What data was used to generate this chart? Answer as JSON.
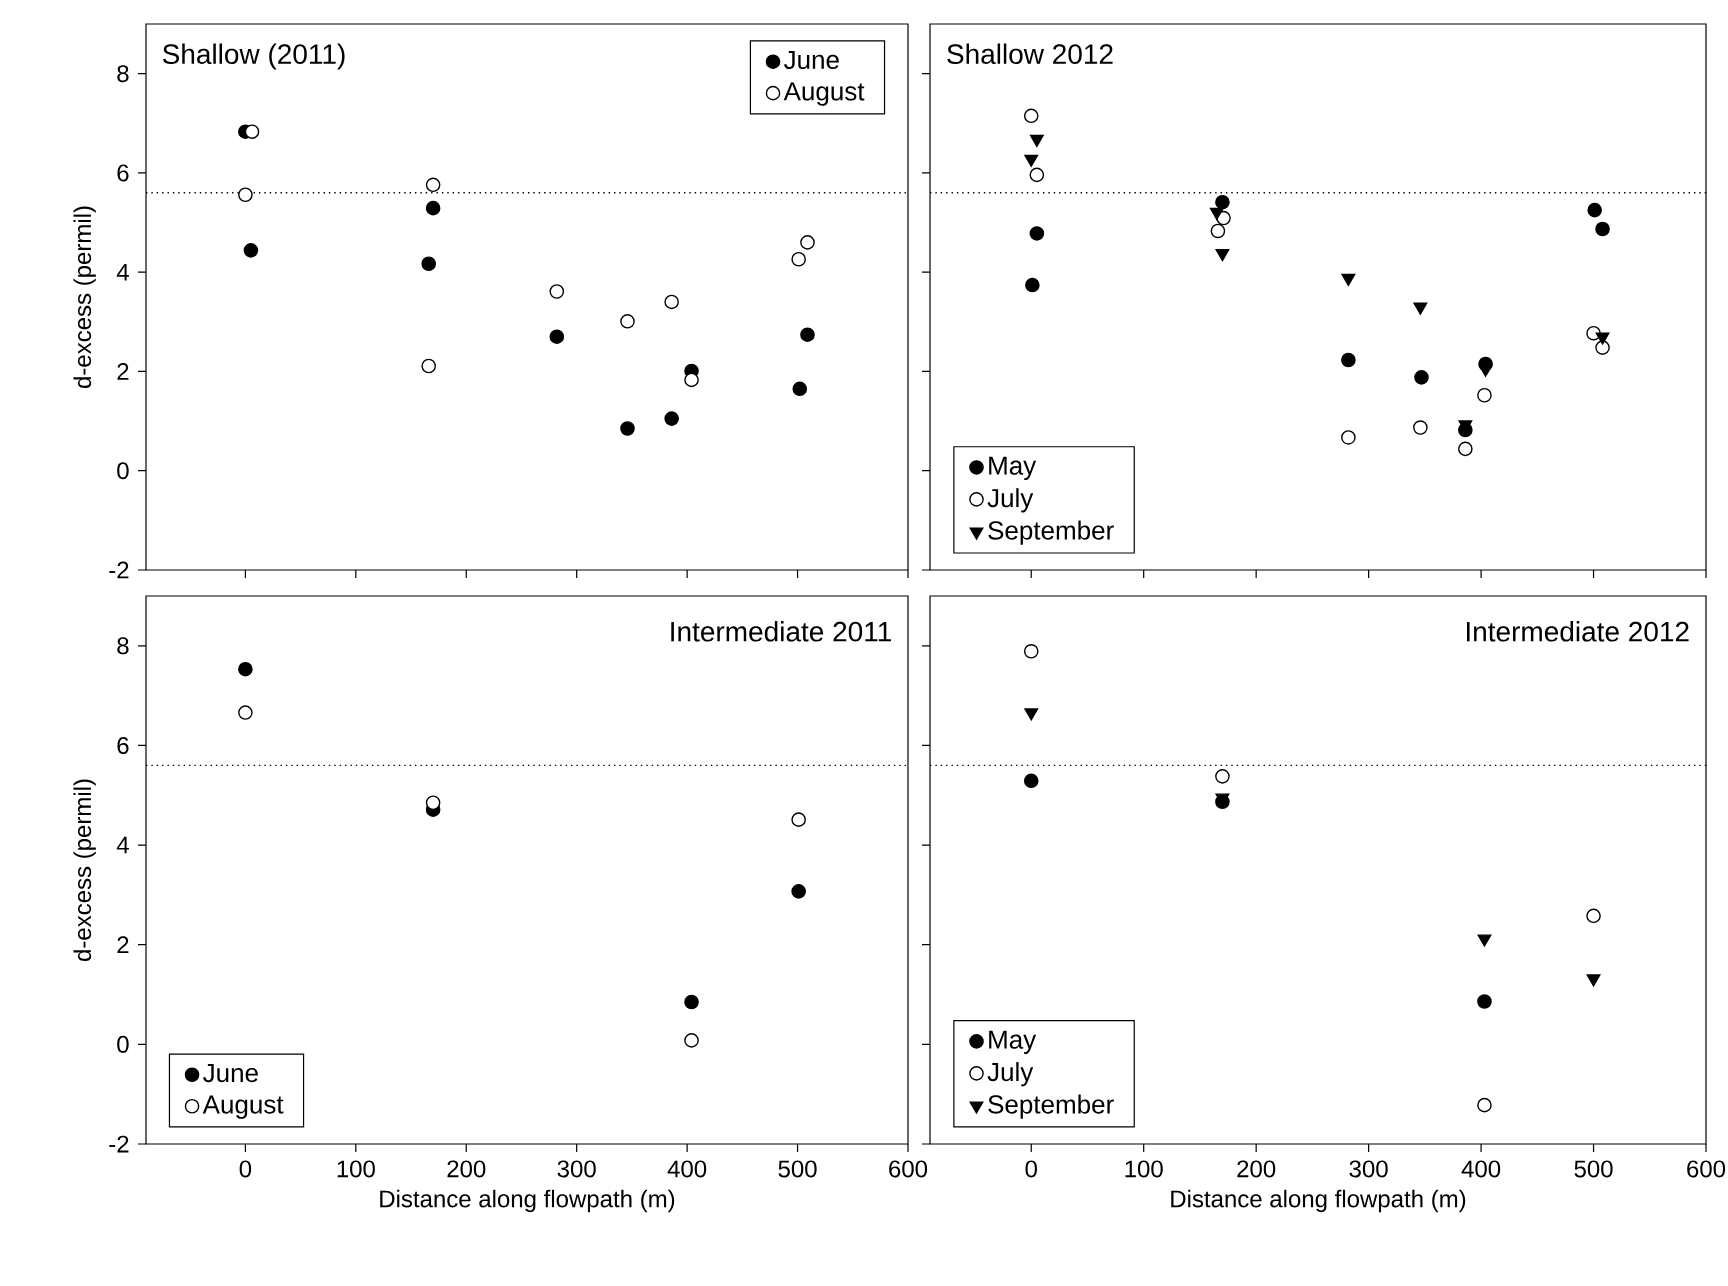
{
  "chart_data": [
    {
      "type": "scatter",
      "title": "Shallow (2011)",
      "ylabel": "d-excess (permil)",
      "xlim": [
        -90,
        600
      ],
      "ylim": [
        -2,
        9
      ],
      "xticks": [
        0,
        100,
        200,
        300,
        400,
        500,
        600
      ],
      "yticks": [
        -2,
        0,
        2,
        4,
        6,
        8
      ],
      "tick_labels": "y",
      "legend": "top right",
      "ref_lines": [
        {
          "axis": "y",
          "value": 5.6,
          "color": "#000000",
          "line_style": "dotted"
        }
      ],
      "series": [
        {
          "name": "June",
          "color": "#000000",
          "marker": "circle",
          "x": [
            0,
            5,
            170,
            166,
            282,
            346,
            386,
            404,
            502,
            509
          ],
          "values": [
            6.83,
            4.44,
            5.29,
            4.17,
            2.7,
            0.85,
            1.05,
            2.01,
            1.65,
            2.74
          ]
        },
        {
          "name": "August",
          "color": "#ffffff",
          "marker": "circle",
          "x": [
            6,
            0,
            170,
            166,
            282,
            346,
            386,
            404,
            501,
            509
          ],
          "values": [
            6.83,
            5.56,
            5.76,
            2.11,
            3.61,
            3.01,
            3.4,
            1.83,
            4.26,
            4.6
          ]
        }
      ]
    },
    {
      "type": "scatter",
      "title": "Shallow 2012",
      "xlim": [
        -90,
        600
      ],
      "ylim": [
        -2,
        9
      ],
      "xticks": [
        0,
        100,
        200,
        300,
        400,
        500,
        600
      ],
      "yticks": [
        -2,
        0,
        2,
        4,
        6,
        8
      ],
      "tick_labels": false,
      "legend": "bottom left",
      "ref_lines": [
        {
          "axis": "y",
          "value": 5.6,
          "color": "#000000",
          "line_style": "dotted"
        }
      ],
      "series": [
        {
          "name": "May",
          "color": "#000000",
          "marker": "circle",
          "x": [
            1,
            5,
            170,
            282,
            347,
            404,
            386,
            501,
            508
          ],
          "values": [
            3.74,
            4.78,
            5.41,
            2.23,
            1.88,
            2.15,
            0.82,
            5.25,
            4.87
          ]
        },
        {
          "name": "July",
          "color": "#ffffff",
          "marker": "circle",
          "x": [
            0,
            5,
            171,
            166,
            282,
            346,
            386,
            403,
            500,
            508
          ],
          "values": [
            7.15,
            5.96,
            5.09,
            4.83,
            0.67,
            0.87,
            0.44,
            1.52,
            2.77,
            2.48
          ]
        },
        {
          "name": "September",
          "color": "#000000",
          "marker": "triangle",
          "x": [
            5,
            0,
            165,
            170,
            282,
            346,
            386,
            404,
            508
          ],
          "values": [
            6.68,
            6.28,
            5.21,
            4.38,
            3.88,
            3.3,
            0.93,
            2.05,
            2.7
          ]
        }
      ]
    },
    {
      "type": "scatter",
      "title": "Intermediate 2011",
      "xlabel": "Distance along flowpath (m)",
      "ylabel": "d-excess (permil)",
      "xlim": [
        -90,
        600
      ],
      "ylim": [
        -2,
        9
      ],
      "xticks": [
        0,
        100,
        200,
        300,
        400,
        500,
        600
      ],
      "yticks": [
        -2,
        0,
        2,
        4,
        6,
        8
      ],
      "legend": "bottom left",
      "ref_lines": [
        {
          "axis": "y",
          "value": 5.6,
          "color": "#000000",
          "line_style": "dotted"
        }
      ],
      "series": [
        {
          "name": "June",
          "color": "#000000",
          "marker": "circle",
          "x": [
            0,
            170,
            404,
            501
          ],
          "values": [
            7.53,
            4.71,
            0.85,
            3.07
          ]
        },
        {
          "name": "August",
          "color": "#ffffff",
          "marker": "circle",
          "x": [
            0,
            170,
            404,
            501
          ],
          "values": [
            6.66,
            4.85,
            0.08,
            4.51
          ]
        }
      ]
    },
    {
      "type": "scatter",
      "title": "Intermediate 2012",
      "xlabel": "Distance along flowpath (m)",
      "xlim": [
        -90,
        600
      ],
      "ylim": [
        -2,
        9
      ],
      "xticks": [
        0,
        100,
        200,
        300,
        400,
        500,
        600
      ],
      "yticks": [
        -2,
        0,
        2,
        4,
        6,
        8
      ],
      "tick_labels": "x",
      "legend": "bottom left",
      "ref_lines": [
        {
          "axis": "y",
          "value": 5.6,
          "color": "#000000",
          "line_style": "dotted"
        }
      ],
      "series": [
        {
          "name": "May",
          "color": "#000000",
          "marker": "circle",
          "x": [
            0,
            170,
            403
          ],
          "values": [
            5.29,
            4.87,
            0.86
          ]
        },
        {
          "name": "July",
          "color": "#ffffff",
          "marker": "circle",
          "x": [
            0,
            170,
            403,
            500
          ],
          "values": [
            7.89,
            5.38,
            -1.22,
            2.58
          ]
        },
        {
          "name": "September",
          "color": "#000000",
          "marker": "triangle",
          "x": [
            0,
            170,
            403,
            500
          ],
          "values": [
            6.66,
            4.95,
            2.12,
            1.32
          ]
        }
      ]
    }
  ]
}
